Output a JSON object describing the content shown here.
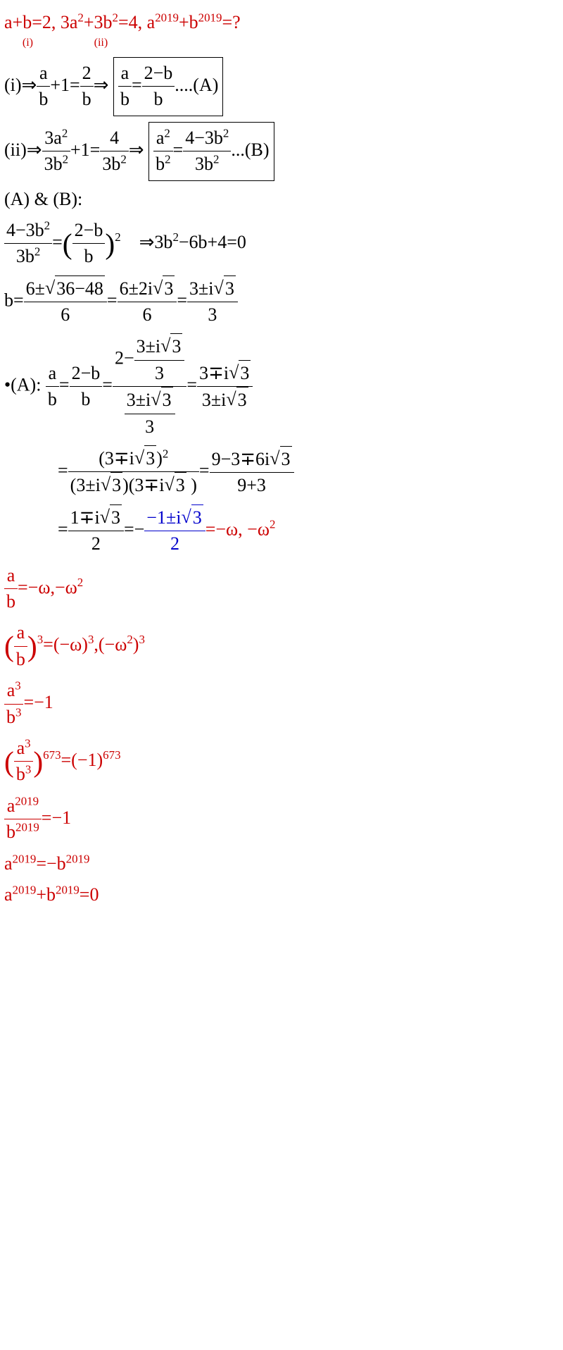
{
  "l1": {
    "a": "a+b=2",
    "b": "(i)",
    "c": ", 3a",
    "d": "+",
    "e": "3b",
    "f": "(ii)",
    "g": "=4,  a",
    "h": "+b",
    "i": "=?"
  },
  "exp2": "2",
  "exp2019": "2019",
  "exp673": "673",
  "exp3": "3",
  "l2": {
    "a": "(i)⇒",
    "b": "a",
    "c": "b",
    "d": "+1=",
    "e": "2",
    "f": "b",
    "g": "⇒",
    "h": "a",
    "i": "b",
    "j": "=",
    "k": "2−b",
    "l": "b",
    "m": "....(A)"
  },
  "l3": {
    "a": "(ii)⇒",
    "b": "3a",
    "c": "3b",
    "d": "+1=",
    "e": "4",
    "f": "3b",
    "g": "⇒",
    "h": "a",
    "i": "b",
    "j": "=",
    "k": "4−3b",
    "l": "3b",
    "m": "...(B)"
  },
  "l4": "(A) & (B):",
  "l5": {
    "a": "4−3b",
    "b": "3b",
    "c": "=",
    "d": "2−b",
    "e": "b",
    "f": "⇒3b",
    "g": "−6b+4=0"
  },
  "l6": {
    "a": "b=",
    "b": "6±",
    "c": "36−48",
    "d": "6",
    "e": "=",
    "f": "6±2i",
    "g": "3",
    "h": "6",
    "i": "=",
    "j": "3±i",
    "k": "3",
    "l": "3"
  },
  "l7": {
    "a": "•(A): ",
    "b": "a",
    "c": "b",
    "d": "=",
    "e": "2−b",
    "f": "b",
    "g": "=",
    "h": "2−",
    "i": "3±i",
    "j": "3",
    "k": "3",
    "l": "3±i",
    "m": "3",
    "n": "3",
    "o": "=",
    "p": "3∓i",
    "q": "3",
    "r": "3±i",
    "s": "3"
  },
  "l8": {
    "a": "=",
    "b": "(3∓i",
    "c": "3",
    "d": ")",
    "e": "(3±i",
    "f": "3",
    "g": ")(3∓i",
    "h": "3",
    "i": " )",
    "j": "=",
    "k": "9−3∓6i",
    "l": "3",
    "m": "9+3"
  },
  "l9": {
    "a": "=",
    "b": "1∓i",
    "c": "3",
    "d": "2",
    "e": "=−",
    "f": "−1±i",
    "g": "3",
    "h": "2",
    "i": "=−ω, −ω"
  },
  "l10": {
    "a": "a",
    "b": "b",
    "c": "=−ω,−ω"
  },
  "l11": {
    "a": "a",
    "b": "b",
    "c": "=(−ω)",
    "d": ",(−ω",
    "e": ")"
  },
  "l12": {
    "a": "a",
    "b": "b",
    "c": "=−1"
  },
  "l13": {
    "a": "a",
    "b": "b",
    "c": "=(−1)"
  },
  "l14": {
    "a": "a",
    "b": "b",
    "c": "=−1"
  },
  "l15": {
    "a": " a",
    "b": "=−b"
  },
  "l16": {
    "a": " a",
    "b": "+b",
    "c": "=0"
  },
  "spacer": "    "
}
